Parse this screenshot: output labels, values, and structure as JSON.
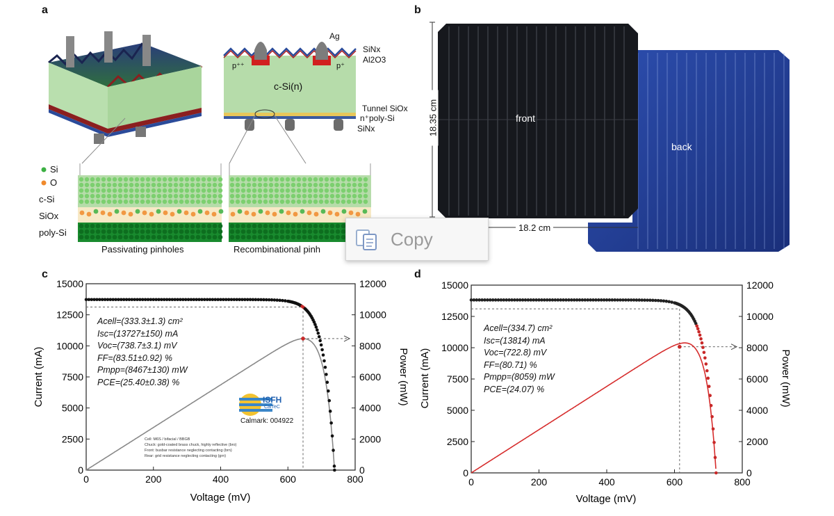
{
  "panel_labels": {
    "a": "a",
    "b": "b",
    "c": "c",
    "d": "d"
  },
  "panel_a": {
    "labels": {
      "ag": "Ag",
      "sinx_top": "SiNx",
      "al2o3": "Al2O3",
      "p_left": "p⁺⁺",
      "p_right": "p⁺",
      "csi_n": "c-Si(n)",
      "tunnel": "Tunnel SiOx",
      "npoly": "n⁺poly-Si",
      "sinx_bottom": "SiNx"
    },
    "legend": {
      "si": "Si",
      "o": "O"
    },
    "layers": {
      "csi": "c-Si",
      "siox": "SiOx",
      "polysi": "poly-Si"
    },
    "captions": {
      "left": "Passivating pinholes",
      "right": "Recombinational pinh"
    },
    "colors": {
      "si": "#3cb043",
      "o": "#f08a2c"
    }
  },
  "panel_b": {
    "front_label": "front",
    "back_label": "back",
    "height_label": "18.35 cm",
    "width_label": "18.2 cm"
  },
  "copy_popup": {
    "label": "Copy"
  },
  "chart_data": [
    {
      "type": "line",
      "xlabel": "Voltage (mV)",
      "ylabel": "Current (mA)",
      "y2label": "Power (mW)",
      "xlim": [
        0,
        800
      ],
      "ylim": [
        0,
        15000
      ],
      "y2lim": [
        0,
        12000
      ],
      "xticks": [
        0,
        200,
        400,
        600,
        800
      ],
      "yticks": [
        0,
        2500,
        5000,
        7500,
        10000,
        12500,
        15000
      ],
      "y2ticks": [
        0,
        2000,
        4000,
        6000,
        8000,
        10000,
        12000
      ],
      "annotations": [
        "Acell=(333.3±1.3) cm²",
        "Isc=(13727±150) mA",
        "Voc=(738.7±3.1) mV",
        "FF=(83.51±0.92) %",
        "Pmpp=(8467±130) mW",
        "PCE=(25.40±0.38) %"
      ],
      "logo": {
        "text": "ISFH",
        "sub": "CalTeC",
        "calmark": "Calmark: 004922"
      },
      "notes": [
        "Cell: M6S / bifacial / BBGB",
        "Chuck: gold-coated brass chuck, highly reflective (bro)",
        "Front: busbar resistance neglecting contacting (brn)",
        "Rear: grid resistance neglecting contacting (grn)"
      ],
      "mpp": {
        "v": 645,
        "i": 13127,
        "p": 8467
      },
      "series": [
        {
          "kind": "iv",
          "isc": 13727,
          "voc": 738.7,
          "color": "#111111",
          "style": "dots"
        },
        {
          "kind": "pv",
          "isc": 13727,
          "voc": 738.7,
          "color": "#888888",
          "style": "line"
        }
      ]
    },
    {
      "type": "line",
      "xlabel": "Voltage (mV)",
      "ylabel": "Current (mA)",
      "y2label": "Power (mW)",
      "xlim": [
        0,
        800
      ],
      "ylim": [
        0,
        15000
      ],
      "y2lim": [
        0,
        12000
      ],
      "xticks": [
        0,
        200,
        400,
        600,
        800
      ],
      "yticks": [
        0,
        2500,
        5000,
        7500,
        10000,
        12500,
        15000
      ],
      "y2ticks": [
        0,
        2000,
        4000,
        6000,
        8000,
        10000,
        12000
      ],
      "annotations": [
        "Acell=(334.7) cm²",
        "Isc=(13814) mA",
        "Voc=(722.8) mV",
        "FF=(80.71) %",
        "Pmpp=(8059) mW",
        "PCE=(24.07) %"
      ],
      "mpp": {
        "v": 615,
        "i": 13104,
        "p": 8059
      },
      "series": [
        {
          "kind": "iv",
          "isc": 13814,
          "voc": 722.8,
          "color": "#222222",
          "style": "dots"
        },
        {
          "kind": "pv",
          "isc": 13814,
          "voc": 722.8,
          "color": "#d62c2c",
          "style": "line"
        }
      ]
    }
  ]
}
